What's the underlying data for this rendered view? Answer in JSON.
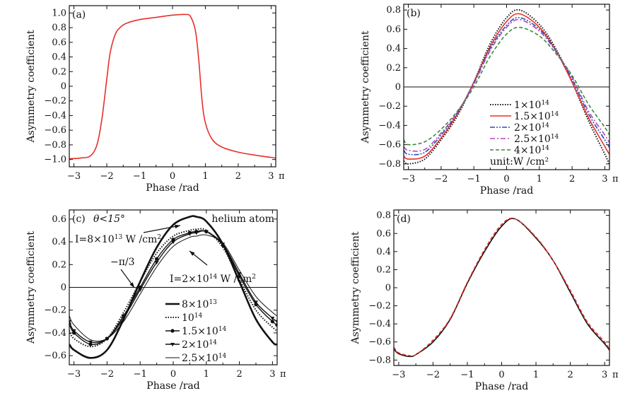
{
  "chart_data": [
    {
      "type": "line",
      "panel_label": "(a)",
      "xlabel": "Phase /rad",
      "ylabel": "Asymmetry coefficient",
      "xlim": [
        -3.14159,
        3.14159
      ],
      "ylim": [
        -1.1,
        1.1
      ],
      "xticks": [
        -3,
        -2,
        -1,
        0,
        1,
        2,
        3
      ],
      "xtick_labels": [
        "−3",
        "−2",
        "−1",
        "0",
        "1",
        "2",
        "3"
      ],
      "x_unit_label": "π",
      "yticks": [
        -1.0,
        -0.8,
        -0.6,
        -0.4,
        -0.2,
        0,
        0.2,
        0.4,
        0.6,
        0.8,
        1.0
      ],
      "ytick_labels": [
        "−1.0",
        "−0.8",
        "−0.6",
        "−0.4",
        "−0.2",
        "0",
        "0.2",
        "0.4",
        "0.6",
        "0.8",
        "1.0"
      ],
      "series": [
        {
          "name": "asymmetry",
          "color": "#e8302a",
          "x": [
            -3.14,
            -2.8,
            -2.5,
            -2.3,
            -2.15,
            -2.0,
            -1.9,
            -1.75,
            -1.6,
            -1.4,
            -1.0,
            -0.5,
            0,
            0.4,
            0.55,
            0.7,
            0.8,
            0.9,
            1.0,
            1.2,
            1.5,
            2.0,
            2.5,
            3.14
          ],
          "y": [
            -0.99,
            -0.98,
            -0.95,
            -0.8,
            -0.45,
            0.1,
            0.45,
            0.7,
            0.8,
            0.86,
            0.91,
            0.94,
            0.97,
            0.98,
            0.95,
            0.75,
            0.35,
            -0.2,
            -0.5,
            -0.72,
            -0.83,
            -0.9,
            -0.94,
            -0.98
          ]
        }
      ]
    },
    {
      "type": "line",
      "panel_label": "(b)",
      "xlabel": "Phase /rad",
      "ylabel": "Asymmetry coefficient",
      "xlim": [
        -3.14159,
        3.14159
      ],
      "ylim": [
        -0.86,
        0.86
      ],
      "xticks": [
        -3,
        -2,
        -1,
        0,
        1,
        2,
        3
      ],
      "xtick_labels": [
        "−3",
        "−2",
        "−1",
        "0",
        "1",
        "2",
        "3"
      ],
      "x_unit_label": "π",
      "yticks": [
        -0.8,
        -0.6,
        -0.4,
        -0.2,
        0,
        0.2,
        0.4,
        0.6,
        0.8
      ],
      "ytick_labels": [
        "−0.8",
        "−0.6",
        "−0.4",
        "−0.2",
        "0",
        "0.2",
        "0.4",
        "0.6",
        "0.8"
      ],
      "zero_line": true,
      "legend_note": "unit:W /cm²",
      "series": [
        {
          "name": "1×10^14",
          "base": "1×10",
          "exp": "14",
          "color": "#111111",
          "style": "dotted",
          "x": [
            -3.14,
            -3,
            -2.5,
            -2,
            -1.5,
            -1,
            -0.5,
            0,
            0.4,
            1,
            1.5,
            2,
            2.5,
            3,
            3.14
          ],
          "y": [
            -0.77,
            -0.8,
            -0.75,
            -0.55,
            -0.3,
            0.05,
            0.45,
            0.72,
            0.8,
            0.65,
            0.4,
            0.05,
            -0.35,
            -0.7,
            -0.8
          ]
        },
        {
          "name": "1.5×10^14",
          "base": "1.5×10",
          "exp": "14",
          "color": "#e8302a",
          "style": "solid",
          "x": [
            -3.14,
            -3,
            -2.5,
            -2,
            -1.5,
            -1,
            -0.5,
            0,
            0.4,
            1,
            1.5,
            2,
            2.5,
            3,
            3.14
          ],
          "y": [
            -0.72,
            -0.75,
            -0.72,
            -0.53,
            -0.28,
            0.05,
            0.42,
            0.68,
            0.76,
            0.62,
            0.38,
            0.05,
            -0.32,
            -0.62,
            -0.7
          ]
        },
        {
          "name": "2×10^14",
          "base": "2×10",
          "exp": "14",
          "color": "#2a4fb0",
          "style": "dashdotdot",
          "x": [
            -3.14,
            -3,
            -2.5,
            -2,
            -1.5,
            -1,
            -0.5,
            0,
            0.4,
            1,
            1.5,
            2,
            2.5,
            3,
            3.14
          ],
          "y": [
            -0.66,
            -0.7,
            -0.68,
            -0.5,
            -0.27,
            0.04,
            0.4,
            0.64,
            0.72,
            0.6,
            0.38,
            0.08,
            -0.28,
            -0.55,
            -0.63
          ]
        },
        {
          "name": "2.5×10^14",
          "base": "2.5×10",
          "exp": "14",
          "color": "#b04ab8",
          "style": "dashdot",
          "x": [
            -3.14,
            -3,
            -2.5,
            -2,
            -1.5,
            -1,
            -0.5,
            0,
            0.4,
            1,
            1.5,
            2,
            2.5,
            3,
            3.14
          ],
          "y": [
            -0.62,
            -0.66,
            -0.65,
            -0.48,
            -0.26,
            0.03,
            0.38,
            0.62,
            0.7,
            0.58,
            0.37,
            0.1,
            -0.25,
            -0.5,
            -0.58
          ]
        },
        {
          "name": "4×10^14",
          "base": "4×10",
          "exp": "14",
          "color": "#3a8a3a",
          "style": "dashed",
          "x": [
            -3.14,
            -3,
            -2.5,
            -2,
            -1.5,
            -1,
            -0.5,
            0,
            0.4,
            1,
            1.5,
            2,
            2.5,
            3,
            3.14
          ],
          "y": [
            -0.55,
            -0.6,
            -0.57,
            -0.44,
            -0.25,
            0.0,
            0.32,
            0.55,
            0.62,
            0.53,
            0.35,
            0.12,
            -0.18,
            -0.42,
            -0.5
          ]
        }
      ]
    },
    {
      "type": "line",
      "panel_label": "(c)",
      "xlabel": "Phase /rad",
      "ylabel": "Asymmetry coefficient",
      "xlim": [
        -3.14159,
        3.14159
      ],
      "ylim": [
        -0.68,
        0.68
      ],
      "xticks": [
        -3,
        -2,
        -1,
        0,
        1,
        2,
        3
      ],
      "xtick_labels": [
        "−3",
        "−2",
        "−1",
        "0",
        "1",
        "2",
        "3"
      ],
      "x_unit_label": "π",
      "yticks": [
        -0.6,
        -0.4,
        -0.2,
        0,
        0.2,
        0.4,
        0.6
      ],
      "ytick_labels": [
        "−0.6",
        "−0.4",
        "−0.2",
        "0",
        "0.2",
        "0.4",
        "0.6"
      ],
      "zero_line": true,
      "annotations": {
        "condition": "θ<15°",
        "atom": "helium atom",
        "intensity_low": {
          "base": "I=8×10",
          "exp": "13",
          "unit": " W /cm",
          "unit_exp": "2"
        },
        "intensity_high": {
          "base": "I=2×10",
          "exp": "14",
          "unit": " W /cm",
          "unit_exp": "2"
        },
        "phase_mark": "−π/3"
      },
      "series": [
        {
          "name": "8×10^13",
          "base": "8×10",
          "exp": "13",
          "color": "#111111",
          "style": "thick",
          "x": [
            -3.14,
            -3,
            -2.5,
            -2,
            -1.5,
            -1,
            -0.5,
            0,
            0.5,
            0.7,
            1,
            1.5,
            2,
            2.5,
            3,
            3.14
          ],
          "y": [
            -0.5,
            -0.55,
            -0.62,
            -0.55,
            -0.28,
            0.05,
            0.35,
            0.55,
            0.62,
            0.62,
            0.58,
            0.38,
            0.05,
            -0.28,
            -0.48,
            -0.5
          ]
        },
        {
          "name": "10^14",
          "base": "10",
          "exp": "14",
          "color": "#111111",
          "style": "dotted",
          "x": [
            -3.14,
            -3,
            -2.5,
            -2,
            -1.5,
            -1,
            -0.5,
            0,
            0.5,
            0.7,
            1,
            1.5,
            2,
            2.5,
            3,
            3.14
          ],
          "y": [
            -0.38,
            -0.45,
            -0.52,
            -0.45,
            -0.22,
            0.05,
            0.3,
            0.45,
            0.5,
            0.51,
            0.5,
            0.35,
            0.07,
            -0.2,
            -0.35,
            -0.38
          ]
        },
        {
          "name": "1.5×10^14",
          "base": "1.5×10",
          "exp": "14",
          "color": "#111111",
          "style": "circle",
          "x": [
            -3.14,
            -3,
            -2.5,
            -2,
            -1.5,
            -1,
            -0.5,
            0,
            0.5,
            0.7,
            1,
            1.5,
            2,
            2.5,
            3,
            3.14
          ],
          "y": [
            -0.32,
            -0.4,
            -0.5,
            -0.45,
            -0.25,
            0.0,
            0.25,
            0.42,
            0.48,
            0.49,
            0.49,
            0.37,
            0.1,
            -0.15,
            -0.3,
            -0.33
          ]
        },
        {
          "name": "2×10^14",
          "base": "2×10",
          "exp": "14",
          "color": "#111111",
          "style": "triangle",
          "x": [
            -3.14,
            -3,
            -2.5,
            -2,
            -1.5,
            -1,
            -0.5,
            0,
            0.5,
            0.7,
            1,
            1.5,
            2,
            2.5,
            3,
            3.14
          ],
          "y": [
            -0.3,
            -0.38,
            -0.48,
            -0.45,
            -0.27,
            -0.02,
            0.22,
            0.4,
            0.47,
            0.48,
            0.49,
            0.38,
            0.12,
            -0.13,
            -0.27,
            -0.3
          ]
        },
        {
          "name": "2.5×10^14",
          "base": "2.5×10",
          "exp": "14",
          "color": "#111111",
          "style": "thin",
          "x": [
            -3.14,
            -3,
            -2.5,
            -2,
            -1.5,
            -1,
            -0.5,
            0,
            0.5,
            0.7,
            1,
            1.5,
            2,
            2.5,
            3,
            3.14
          ],
          "y": [
            -0.25,
            -0.33,
            -0.46,
            -0.45,
            -0.3,
            -0.06,
            0.18,
            0.36,
            0.44,
            0.45,
            0.46,
            0.39,
            0.15,
            -0.08,
            -0.22,
            -0.25
          ]
        }
      ]
    },
    {
      "type": "line",
      "panel_label": "(d)",
      "xlabel": "Phase /rad",
      "ylabel": "Asymmetry coefficient",
      "xlim": [
        -3.14159,
        3.14159
      ],
      "ylim": [
        -0.86,
        0.86
      ],
      "xticks": [
        -3,
        -2,
        -1,
        0,
        1,
        2,
        3
      ],
      "xtick_labels": [
        "−3",
        "−2",
        "−1",
        "0",
        "1",
        "2",
        "3"
      ],
      "x_unit_label": "π",
      "yticks": [
        -0.8,
        -0.6,
        -0.4,
        -0.2,
        0,
        0.2,
        0.4,
        0.6,
        0.8
      ],
      "ytick_labels": [
        "−0.8",
        "−0.6",
        "−0.4",
        "−0.2",
        "0",
        "0.2",
        "0.4",
        "0.6",
        "0.8"
      ],
      "series": [
        {
          "name": "solid",
          "color": "#111111",
          "style": "solid",
          "x": [
            -3.14,
            -3,
            -2.7,
            -2.5,
            -2,
            -1.5,
            -1,
            -0.5,
            0,
            0.4,
            1,
            1.5,
            2,
            2.5,
            3,
            3.14
          ],
          "y": [
            -0.68,
            -0.73,
            -0.76,
            -0.74,
            -0.6,
            -0.35,
            0.05,
            0.4,
            0.68,
            0.76,
            0.55,
            0.3,
            -0.05,
            -0.4,
            -0.62,
            -0.69
          ]
        },
        {
          "name": "dashed",
          "color": "#e8302a",
          "style": "dashed",
          "x": [
            -3.14,
            -3,
            -2.7,
            -2.5,
            -2,
            -1.5,
            -1,
            -0.5,
            0,
            0.4,
            1,
            1.5,
            2,
            2.5,
            3,
            3.14
          ],
          "y": [
            -0.66,
            -0.72,
            -0.75,
            -0.74,
            -0.58,
            -0.34,
            0.06,
            0.42,
            0.7,
            0.76,
            0.56,
            0.3,
            -0.03,
            -0.38,
            -0.6,
            -0.68
          ]
        }
      ]
    }
  ]
}
